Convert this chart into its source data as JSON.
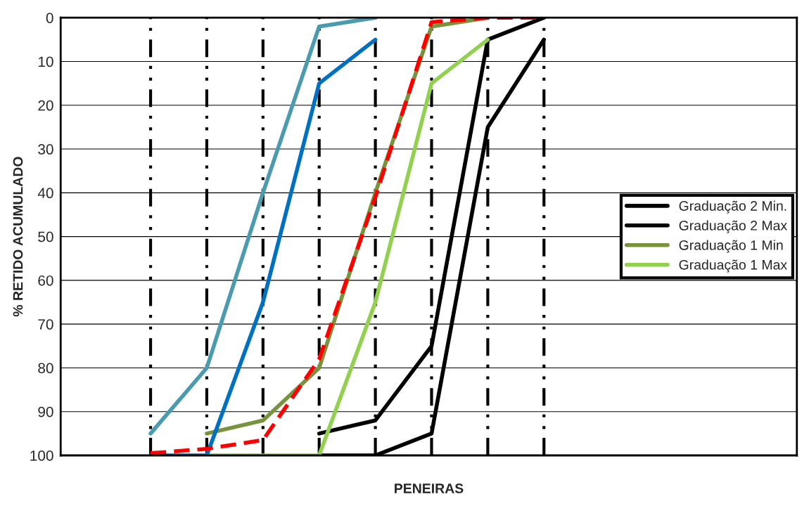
{
  "chart_data": {
    "type": "line",
    "xlabel": "PENEIRAS",
    "ylabel": "% RETIDO ACUMULADO",
    "categories": [
      null,
      null,
      null,
      null,
      null,
      null,
      null,
      null
    ],
    "ylim": [
      100,
      0
    ],
    "yticks": [
      0,
      10,
      20,
      30,
      40,
      50,
      60,
      70,
      80,
      90,
      100
    ],
    "grid": true,
    "legend": "right",
    "marker": "none",
    "series": [
      {
        "name": "Graduação 2 Min.",
        "color": "#000000",
        "values": [
          null,
          null,
          null,
          95,
          92,
          75,
          5,
          0
        ]
      },
      {
        "name": "Graduação 2 Max",
        "color": "#000000",
        "values": [
          null,
          null,
          null,
          100,
          100,
          95,
          25,
          5
        ]
      },
      {
        "name": "Graduação 1 Min",
        "color": "#77933c",
        "values": [
          null,
          95,
          92,
          80,
          40,
          2,
          0,
          null
        ]
      },
      {
        "name": "Graduação 1 Max",
        "color": "#92d050",
        "values": [
          null,
          100,
          100,
          100,
          65,
          15,
          5,
          null
        ]
      },
      {
        "color": "#4a9bb0",
        "values": [
          95,
          80,
          40,
          2,
          0,
          null,
          null,
          null
        ]
      },
      {
        "color": "#0070c0",
        "values": [
          100,
          100,
          65,
          15,
          5,
          null,
          null,
          null
        ]
      },
      {
        "color": "#ff0000",
        "line_style": "dashed",
        "values": [
          99.5,
          98.5,
          96.5,
          78,
          41,
          1,
          0,
          0
        ]
      }
    ]
  }
}
